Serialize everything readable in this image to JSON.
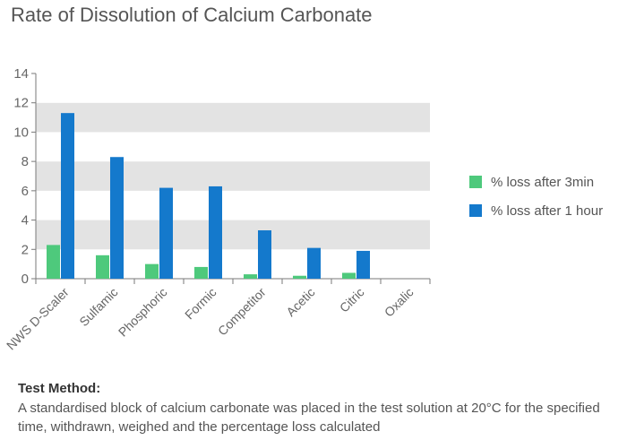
{
  "chart_data": {
    "type": "bar",
    "title": "Rate of Dissolution of Calcium Carbonate",
    "categories": [
      "NWS D-Scaler",
      "Sulfamic",
      "Phosphoric",
      "Formic",
      "Competitor",
      "Acetic",
      "Citric",
      "Oxalic"
    ],
    "series": [
      {
        "name": "% loss after 3min",
        "color": "#4ec97c",
        "values": [
          2.3,
          1.6,
          1.0,
          0.8,
          0.3,
          0.2,
          0.4,
          0
        ]
      },
      {
        "name": "% loss after 1 hour",
        "color": "#1479cc",
        "values": [
          11.3,
          8.3,
          6.2,
          6.3,
          3.3,
          2.1,
          1.9,
          0
        ]
      }
    ],
    "yticks": [
      0,
      2,
      4,
      6,
      8,
      10,
      12,
      14
    ],
    "ylim": [
      0,
      14
    ],
    "grid": "alternating horizontal bands",
    "legend_position": "right"
  },
  "method": {
    "heading": "Test Method:",
    "text": "A standardised block of calcium carbonate was placed in the test solution at 20°C for the specified time, withdrawn, weighed and the percentage loss calculated"
  }
}
